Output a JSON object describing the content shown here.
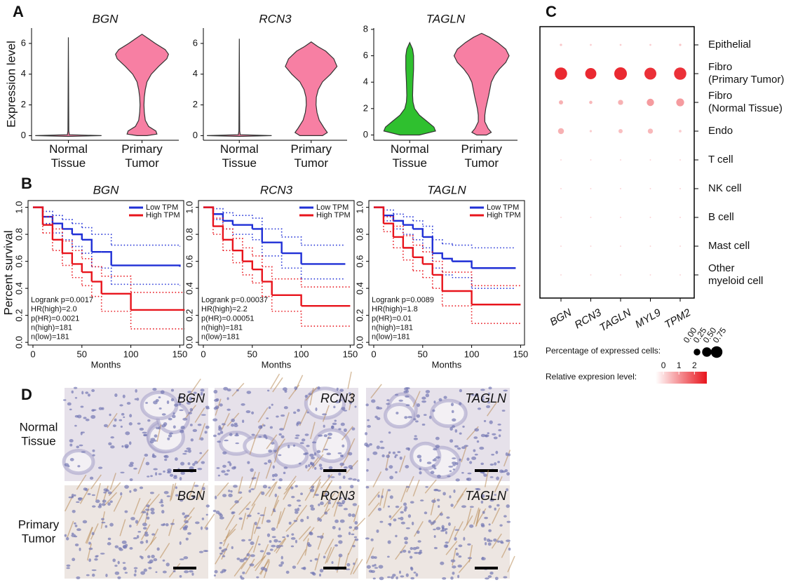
{
  "panel_labels": [
    "A",
    "B",
    "C",
    "D"
  ],
  "chart_data": [
    {
      "type": "violin",
      "title": "BGN",
      "ylabel": "Expression level",
      "categories": [
        "Normal\nTissue",
        "Primary\nTumor"
      ],
      "ylim": [
        -0.3,
        7.0
      ],
      "yticks": [
        0,
        2,
        4,
        6
      ],
      "violins": [
        {
          "color": "#f77fa3",
          "y": [
            -0.05,
            0,
            0.06,
            0.3,
            6.4
          ],
          "width": [
            0,
            1,
            0.03,
            0.012,
            0
          ]
        },
        {
          "color": "#f77fa3",
          "y": [
            0,
            0.1,
            0.3,
            0.6,
            1,
            1.5,
            2,
            2.5,
            3,
            3.5,
            4,
            4.5,
            5,
            5.3,
            5.6,
            6,
            6.3,
            6.6
          ],
          "width": [
            0.15,
            0.45,
            0.42,
            0.2,
            0.1,
            0.07,
            0.06,
            0.07,
            0.1,
            0.15,
            0.28,
            0.5,
            0.75,
            0.8,
            0.7,
            0.4,
            0.2,
            0
          ]
        }
      ]
    },
    {
      "type": "violin",
      "title": "RCN3",
      "categories": [
        "Normal\nTissue",
        "Primary\nTumor"
      ],
      "ylim": [
        -0.3,
        7.0
      ],
      "yticks": [
        0,
        2,
        4,
        6
      ],
      "violins": [
        {
          "color": "#f77fa3",
          "y": [
            -0.05,
            0,
            0.06,
            0.3,
            6.3
          ],
          "width": [
            0,
            1,
            0.03,
            0.012,
            0
          ]
        },
        {
          "color": "#f77fa3",
          "y": [
            0,
            0.2,
            0.5,
            1,
            1.5,
            2,
            2.5,
            3,
            3.5,
            4,
            4.5,
            5,
            5.5,
            5.8,
            6.1
          ],
          "width": [
            0.35,
            0.5,
            0.4,
            0.25,
            0.18,
            0.15,
            0.16,
            0.22,
            0.35,
            0.6,
            0.8,
            0.7,
            0.45,
            0.2,
            0
          ]
        }
      ]
    },
    {
      "type": "violin",
      "title": "TAGLN",
      "categories": [
        "Normal\nTissue",
        "Primary\nTumor"
      ],
      "ylim": [
        -0.4,
        8.1
      ],
      "yticks": [
        0,
        2,
        4,
        6,
        8
      ],
      "violins": [
        {
          "color": "#2fc02f",
          "y": [
            0,
            0.3,
            0.6,
            1,
            1.5,
            2,
            2.5,
            3,
            4,
            5,
            6,
            6.5,
            7
          ],
          "width": [
            0.3,
            0.8,
            0.75,
            0.55,
            0.3,
            0.15,
            0.1,
            0.09,
            0.1,
            0.12,
            0.12,
            0.09,
            0
          ]
        },
        {
          "color": "#f77fa3",
          "y": [
            0,
            0.2,
            0.5,
            1,
            1.5,
            2,
            3,
            4,
            4.5,
            5,
            5.5,
            6,
            6.5,
            7,
            7.4,
            7.7
          ],
          "width": [
            0.15,
            0.3,
            0.2,
            0.1,
            0.1,
            0.13,
            0.22,
            0.3,
            0.4,
            0.55,
            0.75,
            0.85,
            0.75,
            0.5,
            0.25,
            0
          ]
        }
      ]
    },
    {
      "type": "survival",
      "title": "BGN",
      "xlabel": "Months",
      "ylabel": "Percent survival",
      "xlim": [
        -5,
        154
      ],
      "xticks": [
        0,
        50,
        100,
        150
      ],
      "ylim": [
        -0.02,
        1.05
      ],
      "yticks": [
        {
          "value": 0,
          "label": "0.0"
        },
        0.2,
        0.4,
        0.6,
        0.8,
        {
          "value": 1,
          "label": "1.0"
        }
      ],
      "annotations": [
        "Logrank p=0.0017",
        "HR(high)=2.0",
        "p(HR)=0.0021",
        "n(high)=181",
        "n(low)=181"
      ],
      "series": [
        {
          "name": "Low TPM",
          "color": "#1f2fd6",
          "x": [
            0,
            10,
            20,
            30,
            40,
            50,
            60,
            70,
            80,
            150
          ],
          "values": [
            1,
            0.93,
            0.88,
            0.84,
            0.8,
            0.76,
            0.67,
            0.67,
            0.57,
            0.56
          ],
          "ci_upper": [
            1,
            0.97,
            0.94,
            0.91,
            0.88,
            0.85,
            0.8,
            0.8,
            0.72,
            0.71
          ],
          "ci_lower": [
            1,
            0.88,
            0.81,
            0.76,
            0.71,
            0.66,
            0.56,
            0.55,
            0.43,
            0.42
          ]
        },
        {
          "name": "High TPM",
          "color": "#e8141c",
          "x": [
            0,
            10,
            20,
            30,
            40,
            50,
            60,
            70,
            100,
            155
          ],
          "values": [
            1,
            0.87,
            0.76,
            0.66,
            0.58,
            0.52,
            0.45,
            0.36,
            0.24,
            0.24
          ],
          "ci_upper": [
            1,
            0.93,
            0.84,
            0.75,
            0.68,
            0.62,
            0.56,
            0.49,
            0.37,
            0.37
          ],
          "ci_lower": [
            1,
            0.81,
            0.68,
            0.57,
            0.48,
            0.42,
            0.34,
            0.23,
            0.1,
            0.1
          ]
        }
      ]
    },
    {
      "type": "survival",
      "title": "RCN3",
      "xlabel": "Months",
      "xlim": [
        -5,
        154
      ],
      "xticks": [
        0,
        50,
        100,
        150
      ],
      "ylim": [
        -0.02,
        1.05
      ],
      "yticks": [
        {
          "value": 0,
          "label": "0.0"
        },
        0.2,
        0.4,
        0.6,
        0.8,
        {
          "value": 1,
          "label": "1.0"
        }
      ],
      "annotations": [
        "Logrank p=0.00037",
        "HR(high)=2.2",
        "p(HR)=0.00051",
        "n(high)=181",
        "n(low)=181"
      ],
      "series": [
        {
          "name": "Low TPM",
          "color": "#1f2fd6",
          "x": [
            0,
            10,
            20,
            30,
            50,
            60,
            80,
            100,
            145
          ],
          "values": [
            1,
            0.95,
            0.9,
            0.87,
            0.84,
            0.74,
            0.66,
            0.58,
            0.58
          ],
          "ci_upper": [
            1,
            0.99,
            0.96,
            0.94,
            0.92,
            0.84,
            0.78,
            0.72,
            0.72
          ],
          "ci_lower": [
            1,
            0.91,
            0.84,
            0.8,
            0.76,
            0.64,
            0.55,
            0.47,
            0.47
          ]
        },
        {
          "name": "High TPM",
          "color": "#e8141c",
          "x": [
            0,
            10,
            20,
            30,
            40,
            50,
            60,
            70,
            100,
            150
          ],
          "values": [
            1,
            0.86,
            0.76,
            0.68,
            0.6,
            0.54,
            0.45,
            0.35,
            0.27,
            0.27
          ],
          "ci_upper": [
            1,
            0.92,
            0.84,
            0.77,
            0.7,
            0.64,
            0.56,
            0.47,
            0.41,
            0.41
          ],
          "ci_lower": [
            1,
            0.8,
            0.68,
            0.59,
            0.5,
            0.44,
            0.34,
            0.23,
            0.12,
            0.12
          ]
        }
      ]
    },
    {
      "type": "survival",
      "title": "TAGLN",
      "xlabel": "Months",
      "xlim": [
        -5,
        154
      ],
      "xticks": [
        0,
        50,
        100,
        150
      ],
      "ylim": [
        -0.02,
        1.05
      ],
      "yticks": [
        {
          "value": 0,
          "label": "0.0"
        },
        0.2,
        0.4,
        0.6,
        0.8,
        {
          "value": 1,
          "label": "1.0"
        }
      ],
      "annotations": [
        "Logrank p=0.0089",
        "HR(high)=1.8",
        "p(HR)=0.01",
        "n(high)=181",
        "n(low)=181"
      ],
      "series": [
        {
          "name": "Low TPM",
          "color": "#1f2fd6",
          "x": [
            0,
            10,
            20,
            30,
            40,
            50,
            60,
            70,
            80,
            100,
            145
          ],
          "values": [
            1,
            0.94,
            0.9,
            0.87,
            0.84,
            0.78,
            0.66,
            0.62,
            0.6,
            0.55,
            0.55
          ],
          "ci_upper": [
            1,
            0.98,
            0.95,
            0.93,
            0.9,
            0.86,
            0.76,
            0.73,
            0.72,
            0.7,
            0.7
          ],
          "ci_lower": [
            1,
            0.9,
            0.84,
            0.8,
            0.76,
            0.7,
            0.55,
            0.5,
            0.48,
            0.4,
            0.4
          ]
        },
        {
          "name": "High TPM",
          "color": "#e8141c",
          "x": [
            0,
            10,
            20,
            30,
            40,
            50,
            60,
            70,
            100,
            150
          ],
          "values": [
            1,
            0.88,
            0.78,
            0.7,
            0.63,
            0.58,
            0.5,
            0.38,
            0.28,
            0.28
          ],
          "ci_upper": [
            1,
            0.93,
            0.86,
            0.79,
            0.72,
            0.67,
            0.6,
            0.52,
            0.42,
            0.42
          ],
          "ci_lower": [
            1,
            0.82,
            0.7,
            0.61,
            0.53,
            0.48,
            0.4,
            0.27,
            0.14,
            0.14
          ]
        }
      ]
    },
    {
      "type": "dot",
      "categories": [
        "BGN",
        "RCN3",
        "TAGLN",
        "MYL9",
        "TPM2"
      ],
      "rows": [
        "Epithelial",
        "Fibro\n(Primary Tumor)",
        "Fibro\n (Normal Tissue)",
        "Endo",
        "T cell",
        "NK cell",
        "B cell",
        "Mast cell",
        "Other\nmyeloid cell"
      ],
      "pct": [
        [
          0.03,
          0.02,
          0.02,
          0.02,
          0.03
        ],
        [
          0.85,
          0.7,
          0.9,
          0.8,
          0.85
        ],
        [
          0.1,
          0.06,
          0.15,
          0.3,
          0.35
        ],
        [
          0.2,
          0.03,
          0.1,
          0.15,
          0.04
        ],
        [
          0.01,
          0.01,
          0.01,
          0.01,
          0.01
        ],
        [
          0.01,
          0.01,
          0.01,
          0.01,
          0.01
        ],
        [
          0.01,
          0.01,
          0.01,
          0.01,
          0.01
        ],
        [
          0.01,
          0.01,
          0.01,
          0.01,
          0.01
        ],
        [
          0.01,
          0.01,
          0.01,
          0.01,
          0.01
        ]
      ],
      "expr": [
        [
          0.3,
          0.2,
          0.2,
          0.2,
          0.3
        ],
        [
          2.5,
          2.5,
          2.5,
          2.4,
          2.4
        ],
        [
          0.6,
          0.5,
          0.6,
          0.9,
          0.9
        ],
        [
          0.6,
          0.2,
          0.4,
          0.5,
          0.2
        ],
        [
          0.1,
          0.1,
          0.1,
          0.1,
          0.1
        ],
        [
          0.1,
          0.1,
          0.1,
          0.1,
          0.1
        ],
        [
          0.1,
          0.1,
          0.1,
          0.1,
          0.1
        ],
        [
          0.1,
          0.1,
          0.1,
          0.1,
          0.1
        ],
        [
          0.1,
          0.1,
          0.1,
          0.1,
          0.1
        ]
      ],
      "size_legend": {
        "title": "Percentage of expressed cells:",
        "ticks": [
          {
            "value": 0,
            "label": "0.00"
          },
          0.25,
          {
            "value": 0.5,
            "label": "0.50"
          },
          0.75
        ]
      },
      "color_legend": {
        "title": "Relative expresion level:",
        "lim": [
          -0.5,
          2.8
        ],
        "ticks": [
          0,
          1,
          2
        ],
        "colors": [
          "#ffffff",
          "#e8141c"
        ]
      }
    }
  ],
  "ihc": {
    "rows": [
      "Normal\nTissue",
      "Primary\nTumor"
    ],
    "genes": [
      "BGN",
      "RCN3",
      "TAGLN"
    ]
  }
}
